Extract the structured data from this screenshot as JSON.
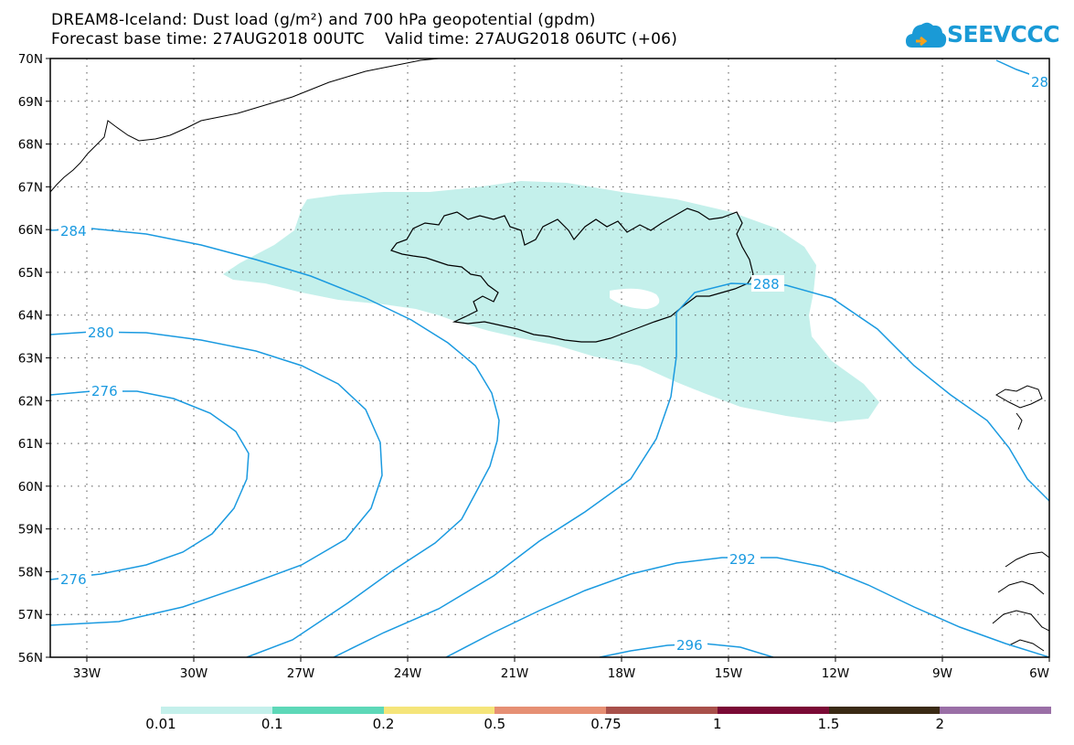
{
  "header": {
    "title_line1": "DREAM8-Iceland: Dust load (g/m²) and 700 hPa geopotential (gpdm)",
    "title_line2": "Forecast base time: 27AUG2018 00UTC    Valid time: 27AUG2018 06UTC (+06)"
  },
  "logo": {
    "text": "SEEVCCC",
    "color": "#1a9ad6"
  },
  "map": {
    "latitude_labels": [
      "70N",
      "69N",
      "68N",
      "67N",
      "66N",
      "65N",
      "64N",
      "63N",
      "62N",
      "61N",
      "60N",
      "59N",
      "58N",
      "57N",
      "56N"
    ],
    "longitude_labels": [
      "33W",
      "30W",
      "27W",
      "24W",
      "21W",
      "18W",
      "15W",
      "12W",
      "9W",
      "6W"
    ],
    "contour_color": "#1a9ae0",
    "dust_fill_color": "#c4f0eb",
    "contour_labels": [
      "284",
      "280",
      "276",
      "276",
      "288",
      "292",
      "296",
      "28"
    ]
  },
  "colorbar": {
    "labels": [
      "0.01",
      "0.1",
      "0.2",
      "0.5",
      "0.75",
      "1",
      "1.5",
      "2"
    ],
    "colors": [
      "#c4f0eb",
      "#5dd8b8",
      "#f5e57a",
      "#e69074",
      "#a8504a",
      "#7a0a35",
      "#3a2a14",
      "#9a6fa6"
    ]
  }
}
